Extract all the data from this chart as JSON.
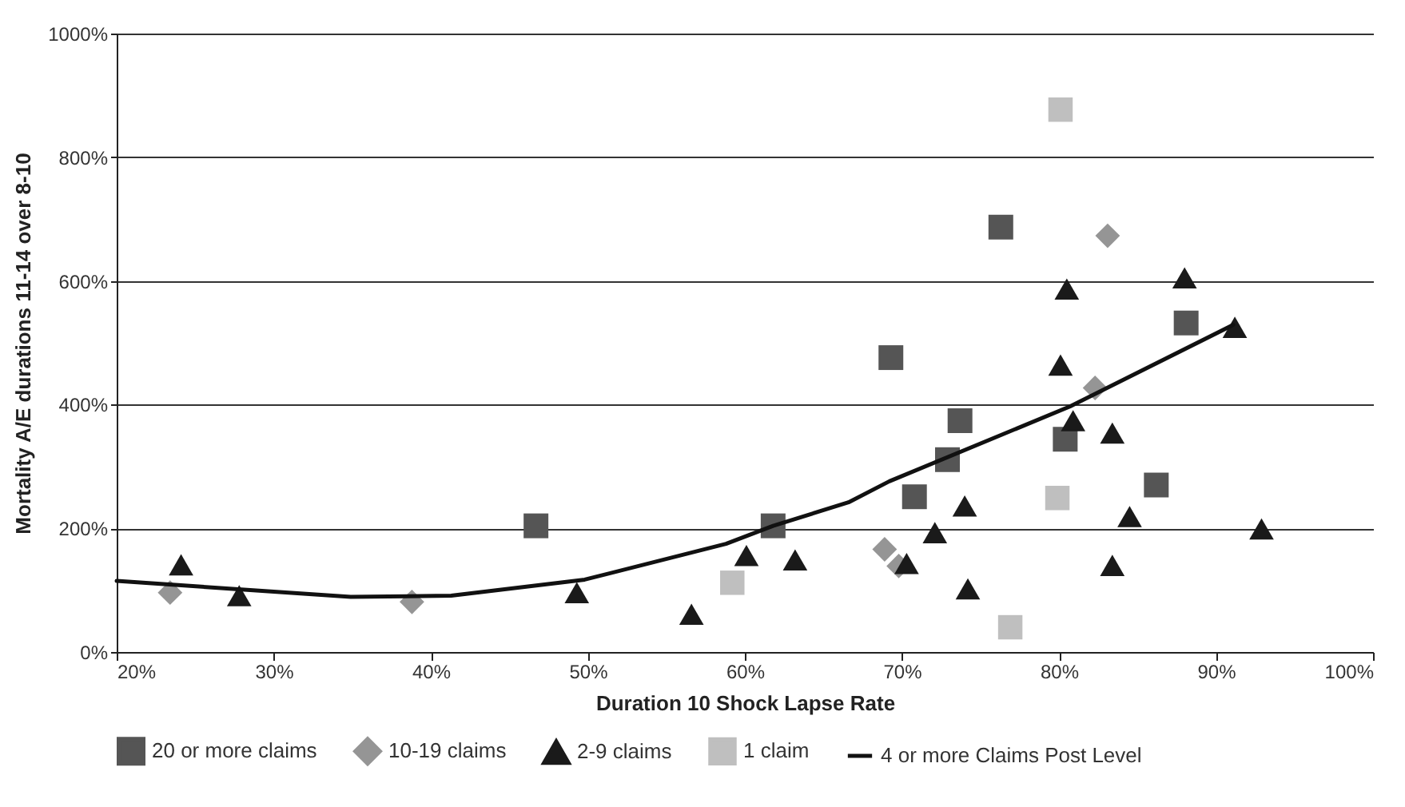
{
  "chart_data": {
    "type": "scatter",
    "xlabel": "Duration 10 Shock Lapse Rate",
    "ylabel": "Mortality A/E durations 11-14 over 8-10",
    "xlim": [
      20,
      100
    ],
    "xticks": [
      {
        "value": 20,
        "label": "20%"
      },
      {
        "value": 30,
        "label": "30%"
      },
      {
        "value": 40,
        "label": "40%"
      },
      {
        "value": 50,
        "label": "50%"
      },
      {
        "value": 60,
        "label": "60%"
      },
      {
        "value": 70,
        "label": "70%"
      },
      {
        "value": 80,
        "label": "80%"
      },
      {
        "value": 90,
        "label": "90%"
      },
      {
        "value": 100,
        "label": "100%"
      }
    ],
    "ylim": [
      0,
      1000
    ],
    "yticks": [
      {
        "value": 0,
        "label": "0%"
      },
      {
        "value": 200,
        "label": "200%"
      },
      {
        "value": 400,
        "label": "400%"
      },
      {
        "value": 600,
        "label": "600%"
      },
      {
        "value": 800,
        "label": "800%"
      },
      {
        "value": 1000,
        "label": "1000%"
      }
    ],
    "grid": "y",
    "legend": "bottom",
    "series": [
      {
        "name": "20 or more claims",
        "marker": "square",
        "color": "#555555",
        "x": [
          46.7,
          61.8,
          69.3,
          76.3,
          73.7,
          72.9,
          70.8,
          80.4,
          88.1,
          86.2
        ],
        "values": [
          204,
          204,
          476,
          687,
          374,
          311,
          251,
          344,
          532,
          270
        ]
      },
      {
        "name": "10-19 claims",
        "marker": "diamond",
        "color": "#959595",
        "x": [
          23.4,
          38.8,
          83.1,
          82.3,
          68.9,
          69.8
        ],
        "values": [
          96,
          81,
          673,
          427,
          166,
          139
        ]
      },
      {
        "name": "2-9 claims",
        "marker": "triangle",
        "color": "#1a1a1a",
        "x": [
          24.1,
          27.8,
          49.3,
          56.6,
          60.1,
          63.2,
          70.3,
          72.1,
          74.0,
          74.2,
          80.5,
          80.1,
          80.9,
          83.4,
          84.5,
          83.4,
          88.0,
          91.2,
          92.9
        ],
        "values": [
          141,
          91,
          96,
          61,
          156,
          149,
          143,
          193,
          236,
          102,
          587,
          464,
          374,
          354,
          219,
          140,
          605,
          525,
          199
        ]
      },
      {
        "name": "1 claim",
        "marker": "square",
        "color": "#bfbfbf",
        "x": [
          59.2,
          80.1,
          79.9,
          76.9
        ],
        "values": [
          112,
          877,
          249,
          40
        ]
      },
      {
        "name": "4 or more Claims Post Level",
        "type": "line",
        "color": "#111111",
        "x": [
          20,
          34.9,
          41.3,
          49.8,
          58.8,
          61.8,
          66.6,
          69.2,
          80.7,
          91.1
        ],
        "values": [
          115,
          89,
          91,
          117,
          175,
          204,
          242,
          276,
          397,
          529
        ]
      }
    ]
  }
}
